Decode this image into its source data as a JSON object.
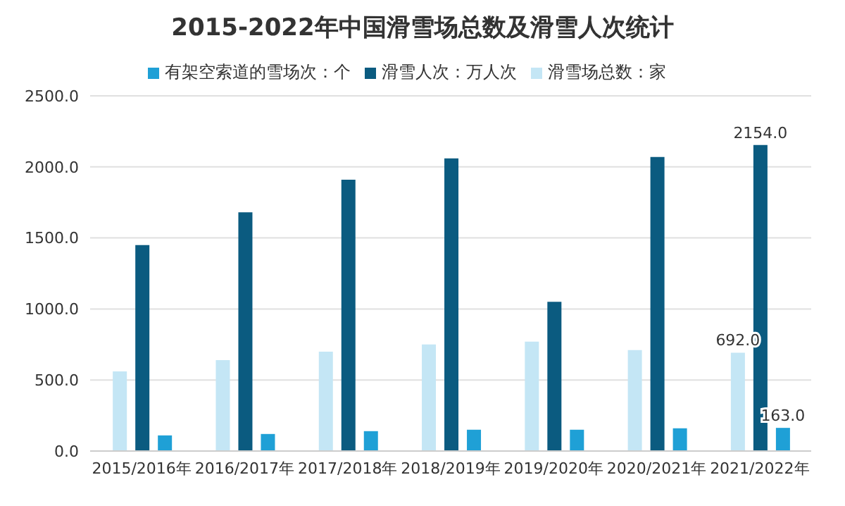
{
  "chart_data": {
    "type": "bar",
    "title": "2015-2022年中国滑雪场总数及滑雪人次统计",
    "categories": [
      "2015/2016年",
      "2016/2017年",
      "2017/2018年",
      "2018/2019年",
      "2019/2020年",
      "2020/2021年",
      "2021/2022年"
    ],
    "series": [
      {
        "name": "滑雪场总数：家",
        "color": "#c4e6f5",
        "values": [
          560,
          640,
          700,
          750,
          770,
          710,
          692
        ],
        "value_labels": [
          null,
          null,
          null,
          null,
          null,
          null,
          "692.0"
        ]
      },
      {
        "name": "滑雪人次：万人次",
        "color": "#0b5b80",
        "values": [
          1450,
          1680,
          1910,
          2060,
          1050,
          2070,
          2154
        ],
        "value_labels": [
          null,
          null,
          null,
          null,
          null,
          null,
          "2154.0"
        ]
      },
      {
        "name": "有架空索道的雪场次：个",
        "color": "#1fa0d6",
        "values": [
          110,
          120,
          140,
          150,
          150,
          160,
          163
        ],
        "value_labels": [
          null,
          null,
          null,
          null,
          null,
          null,
          "163.0"
        ]
      }
    ],
    "ylim": [
      0,
      2500
    ],
    "yticks": [
      {
        "value": 0,
        "label": "0.0"
      },
      {
        "value": 500,
        "label": "500.0"
      },
      {
        "value": 1000,
        "label": "1000.0"
      },
      {
        "value": 1500,
        "label": "1500.0"
      },
      {
        "value": 2000,
        "label": "2000.0"
      },
      {
        "value": 2500,
        "label": "2500.0"
      }
    ],
    "grid": "y",
    "legend": "top"
  }
}
